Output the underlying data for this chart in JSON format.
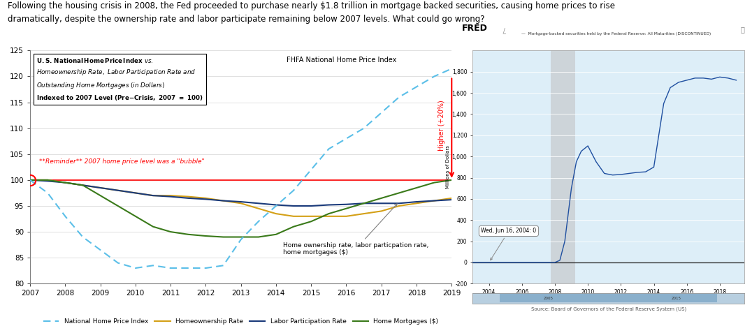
{
  "title_line1": "Following the housing crisis in 2008, the Fed proceeded to purchase nearly $1.8 trillion in mortgage backed securities, causing home prices to rise",
  "title_line2": "dramatically, despite the ownership rate and labor participate remaining below 2007 levels. What could go wrong?",
  "years": [
    2007,
    2007.5,
    2008,
    2008.5,
    2009,
    2009.5,
    2010,
    2010.5,
    2011,
    2011.5,
    2012,
    2012.5,
    2013,
    2013.5,
    2014,
    2014.5,
    2015,
    2015.5,
    2016,
    2016.5,
    2017,
    2017.5,
    2018,
    2018.5,
    2019
  ],
  "nhpi": [
    100,
    97.5,
    93,
    89,
    86.5,
    84,
    83,
    83.5,
    83,
    83,
    83,
    83.5,
    88.5,
    92,
    95,
    98,
    102,
    106,
    108,
    110,
    113,
    116,
    118,
    120,
    121.5
  ],
  "homeownership": [
    100,
    100,
    99.5,
    99,
    98.5,
    98,
    97.5,
    97,
    97,
    96.8,
    96.5,
    96,
    95.5,
    94.5,
    93.5,
    93,
    93,
    93,
    93,
    93.5,
    94,
    95,
    95.5,
    96,
    96.5
  ],
  "labor": [
    100,
    99.8,
    99.5,
    99,
    98.5,
    98,
    97.5,
    97,
    96.8,
    96.5,
    96.3,
    96,
    95.8,
    95.5,
    95.2,
    95,
    95,
    95.2,
    95.3,
    95.5,
    95.5,
    95.5,
    95.8,
    96,
    96.2
  ],
  "mortgages": [
    100,
    100,
    99.5,
    99,
    97,
    95,
    93,
    91,
    90,
    89.5,
    89.2,
    89,
    89,
    89,
    89.5,
    91,
    92,
    93.5,
    94.5,
    95.5,
    96.5,
    97.5,
    98.5,
    99.5,
    100
  ],
  "nhpi_color": "#5bbfe8",
  "homeownership_color": "#d4a017",
  "labor_color": "#1a3a7a",
  "mortgages_color": "#3a7a1a",
  "ylim": [
    80,
    125
  ],
  "xlim_left": [
    2007,
    2019
  ],
  "legend_labels": [
    "National Home Price Index",
    "Homeownership Rate",
    "Labor Participation Rate",
    "Home Mortgages ($)"
  ],
  "annotation_fhfa": "FHFA National Home Price Index",
  "annotation_higher": "Higher (+20%)",
  "annotation_other": "Home ownership rate, labor particpation rate,\nhome mortgages ($)",
  "annotation_bubble": "**Reminder** 2007 home price level was a \"bubble\"",
  "fred_bg": "#c8dff0",
  "fred_inner_bg": "#ddeef8",
  "fred_line_color": "#1f4fa0",
  "fred_title": "Mortgage-backed securities held by the Federal Reserve: All Maturities (DISCONTINUED)",
  "fred_ylabel": "Millions of Dollars",
  "fred_source": "Source: Board of Governors of the Federal Reserve System (US)",
  "fred_tooltip": "Wed, Jun 16, 2004: 0",
  "fred_years": [
    2003,
    2004,
    2005,
    2006,
    2007,
    2007.5,
    2008,
    2008.3,
    2008.6,
    2009,
    2009.3,
    2009.6,
    2010,
    2010.5,
    2011,
    2011.5,
    2012,
    2012.5,
    2013,
    2013.5,
    2014,
    2014.3,
    2014.6,
    2015,
    2015.5,
    2016,
    2016.5,
    2017,
    2017.5,
    2018,
    2018.5,
    2019
  ],
  "fred_values": [
    0,
    0,
    0,
    0,
    0,
    0,
    0,
    20000,
    200000,
    700000,
    950000,
    1050000,
    1100000,
    950000,
    840000,
    825000,
    830000,
    840000,
    850000,
    855000,
    900000,
    1200000,
    1500000,
    1650000,
    1700000,
    1720000,
    1740000,
    1740000,
    1730000,
    1750000,
    1740000,
    1720000
  ],
  "fred_ylim": [
    -200000,
    2000000
  ],
  "fred_xlim": [
    2003.0,
    2019.5
  ],
  "fred_yticks": [
    -200000,
    0,
    200000,
    400000,
    600000,
    800000,
    1000000,
    1200000,
    1400000,
    1600000,
    1800000
  ],
  "fred_xticks": [
    2004,
    2006,
    2008,
    2010,
    2012,
    2014,
    2016,
    2018
  ],
  "recession_start": 2007.75,
  "recession_end": 2009.25
}
